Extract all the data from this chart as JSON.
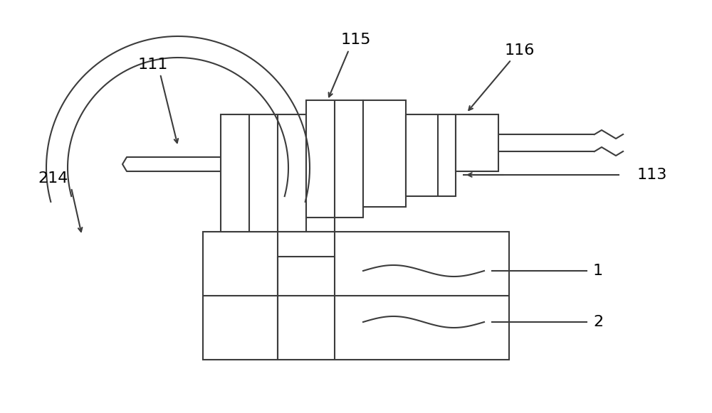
{
  "bg_color": "#ffffff",
  "lc": "#3c3c3c",
  "lw": 1.5,
  "fig_width": 10.0,
  "fig_height": 5.81,
  "dpi": 100
}
